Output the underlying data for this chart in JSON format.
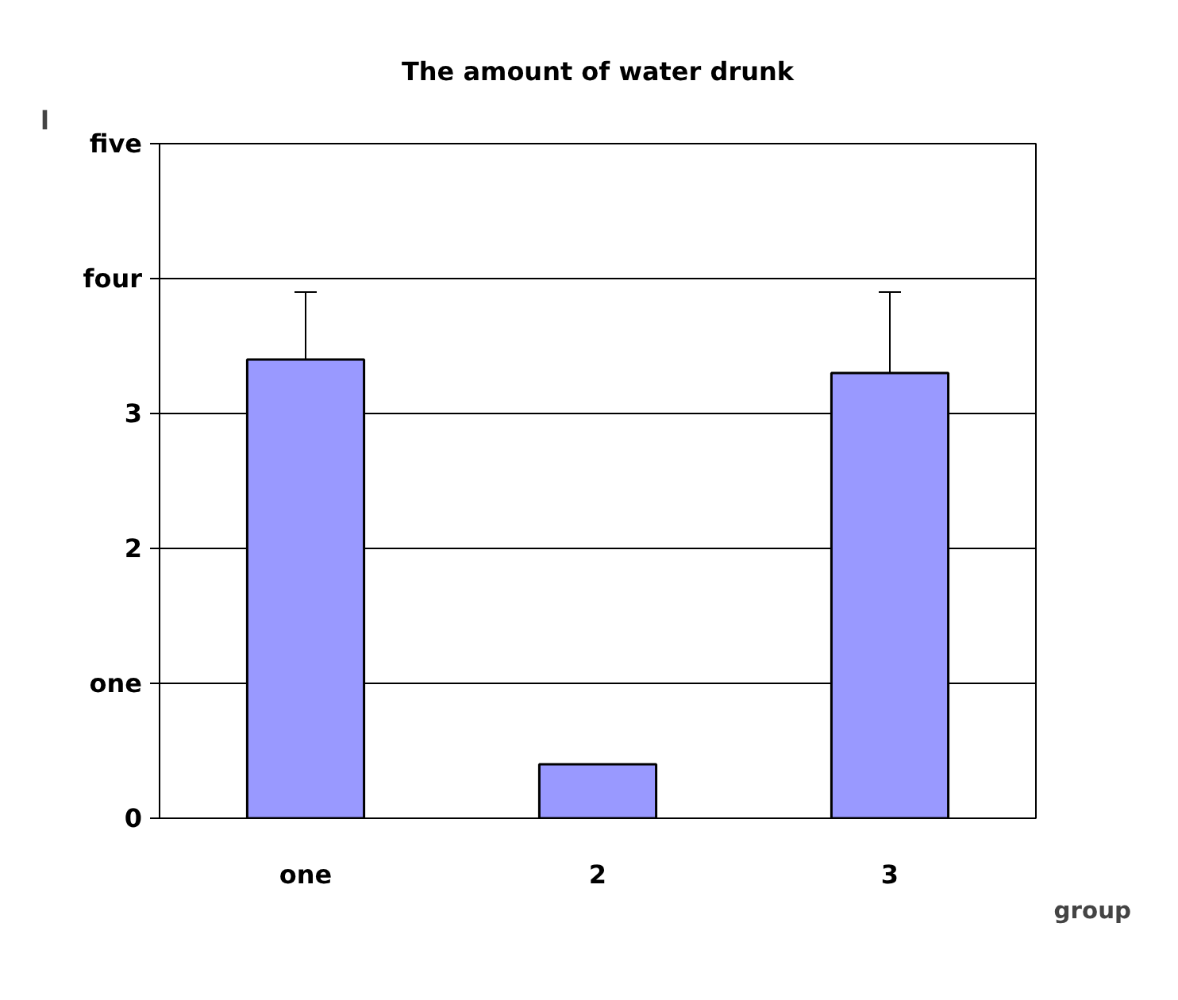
{
  "chart_data": {
    "type": "bar",
    "title": "The amount of water drunk",
    "xlabel": "group",
    "ylabel": "l",
    "categories": [
      "one",
      "2",
      "3"
    ],
    "values": [
      3.4,
      0.4,
      3.3
    ],
    "errors": [
      0.5,
      0,
      0.6
    ],
    "color": "#9999ff",
    "ylim": [
      0,
      5
    ],
    "yticks": [
      0,
      {
        "value": 1,
        "label": "one"
      },
      2,
      3,
      {
        "value": 4,
        "label": "four"
      },
      {
        "value": 5,
        "label": "five"
      }
    ],
    "grid": "y"
  }
}
